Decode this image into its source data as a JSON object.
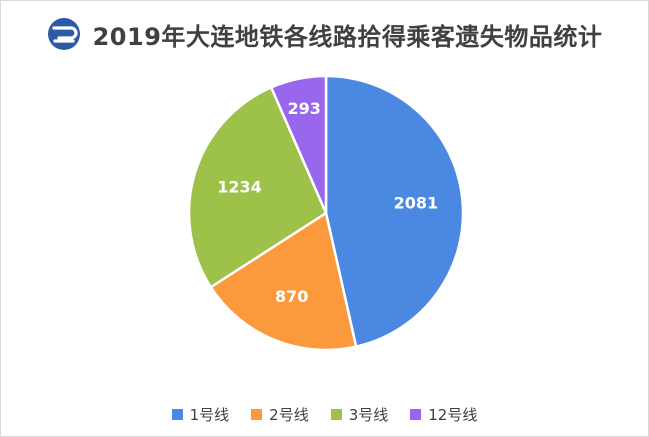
{
  "colors": {
    "series": [
      "#4A88E1",
      "#FB9A3C",
      "#9DC149",
      "#9966EE"
    ],
    "title": "#404040",
    "logo": "#2E5AA6"
  },
  "header": {
    "logo_icon": "dalian-metro-logo-icon",
    "title": "2019年大连地铁各线路拾得乘客遗失物品统计"
  },
  "chart_data": {
    "type": "pie",
    "title": "2019年大连地铁各线路拾得乘客遗失物品统计",
    "categories": [
      "1号线",
      "2号线",
      "3号线",
      "12号线"
    ],
    "values": [
      2081,
      870,
      1234,
      293
    ],
    "data_labels": [
      "2081",
      "870",
      "1234",
      "293"
    ],
    "legend_position": "bottom",
    "start_angle_deg": 0,
    "direction": "clockwise"
  }
}
